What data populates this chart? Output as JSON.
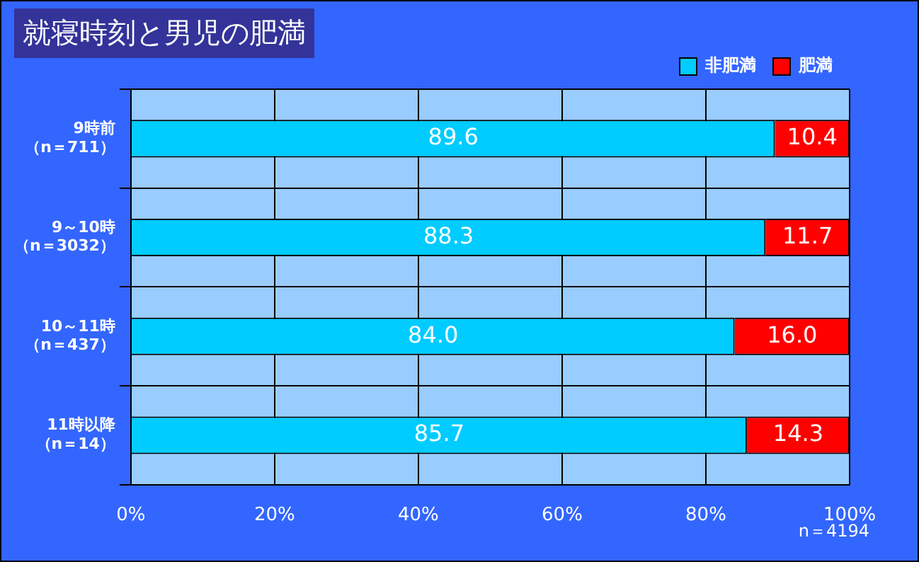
{
  "chart_data": {
    "type": "bar",
    "title": "就寝時刻と男児の肥満",
    "orientation": "horizontal",
    "stacked": true,
    "categories": [
      "9時前（n＝711）",
      "9～10時（n＝3032）",
      "10～11時（n＝437）",
      "11時以降（n＝14）"
    ],
    "series": [
      {
        "name": "非肥満",
        "color": "#00ccff",
        "values": [
          89.6,
          88.3,
          84.0,
          85.7
        ],
        "value_labels": [
          "89.6",
          "88.3",
          "84.0",
          "85.7"
        ]
      },
      {
        "name": "肥満",
        "color": "#ff0000",
        "values": [
          10.4,
          11.7,
          16.0,
          14.3
        ],
        "value_labels": [
          "10.4",
          "11.7",
          "16.0",
          "14.3"
        ]
      }
    ],
    "xlim": [
      0,
      100
    ],
    "xticks": [
      {
        "value": 0,
        "label": "0%"
      },
      {
        "value": 20,
        "label": "20%"
      },
      {
        "value": 40,
        "label": "40%"
      },
      {
        "value": 60,
        "label": "60%"
      },
      {
        "value": 80,
        "label": "80%"
      },
      {
        "value": 100,
        "label": "100%"
      }
    ],
    "grid": true,
    "legend": "top",
    "annotations": [
      "n＝4194"
    ]
  }
}
